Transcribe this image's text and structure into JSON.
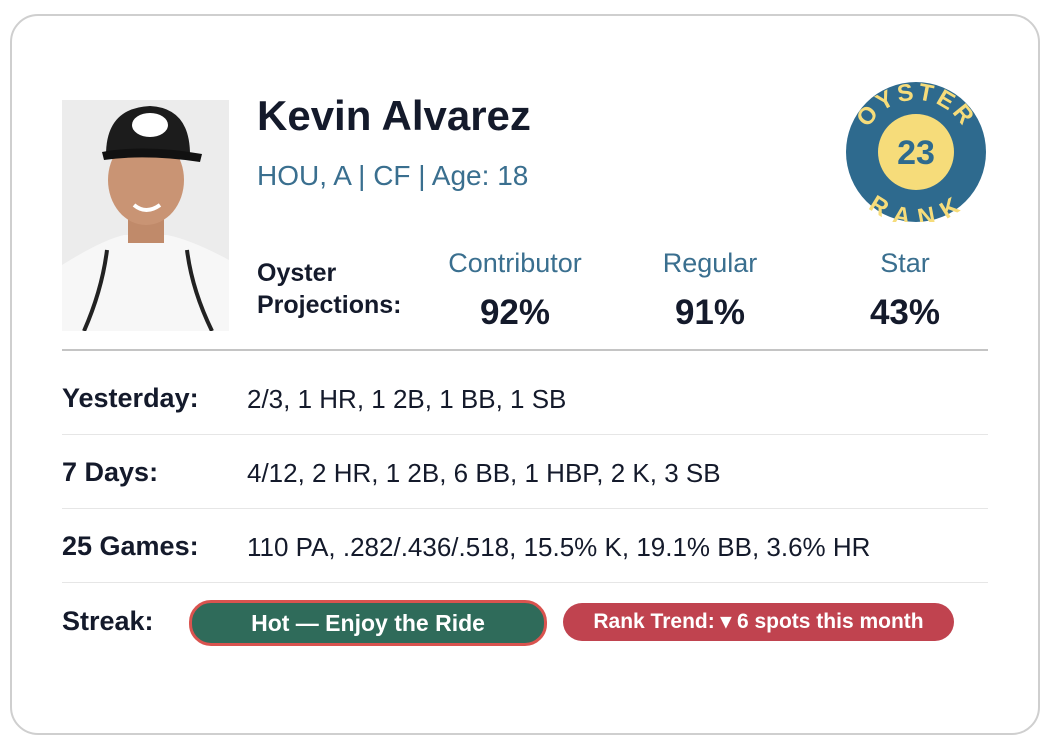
{
  "player": {
    "name": "Kevin Alvarez",
    "meta": "HOU, A | CF | Age: 18"
  },
  "badge": {
    "top": "OYSTER",
    "bottom": "RANK",
    "rank": "23"
  },
  "projections": {
    "label": "Oyster Projections:",
    "columns": [
      {
        "label": "Contributor",
        "value": "92%"
      },
      {
        "label": "Regular",
        "value": "91%"
      },
      {
        "label": "Star",
        "value": "43%"
      }
    ]
  },
  "stats": [
    {
      "label": "Yesterday:",
      "value": "2/3, 1 HR, 1 2B, 1 BB, 1 SB"
    },
    {
      "label": "7 Days:",
      "value": "4/12, 2 HR, 1 2B, 6 BB, 1 HBP, 2 K, 3 SB"
    },
    {
      "label": "25 Games:",
      "value": "110 PA, .282/.436/.518, 15.5% K, 19.1% BB, 3.6% HR"
    }
  ],
  "streak": {
    "label": "Streak:",
    "status": "Hot — Enjoy the Ride",
    "trend": "Rank Trend: ▾ 6 spots this month"
  }
}
